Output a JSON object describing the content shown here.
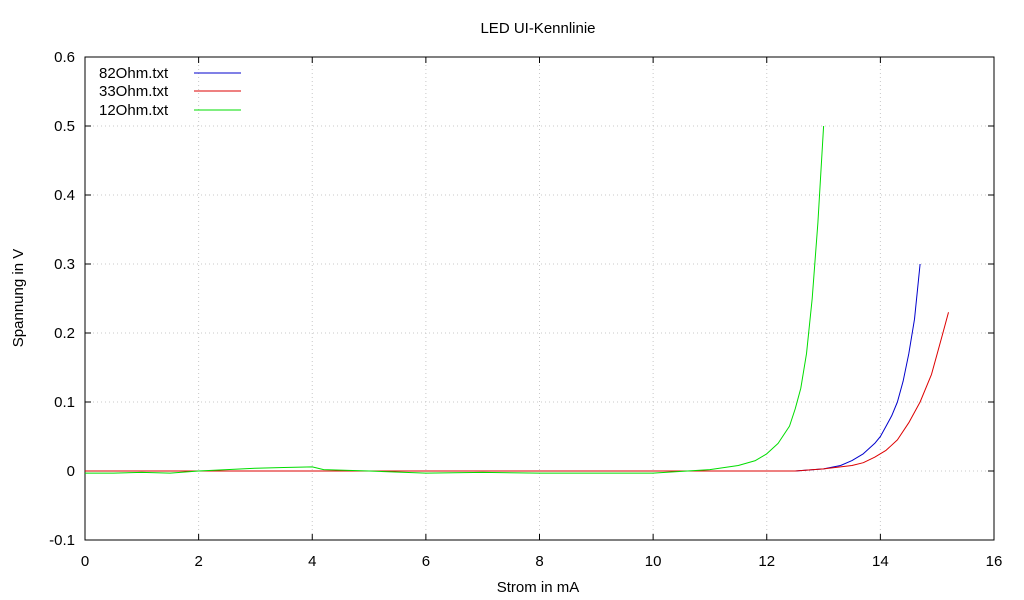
{
  "chart_data": {
    "type": "line",
    "title": "LED UI-Kennlinie",
    "xlabel": "Strom in mA",
    "ylabel": "Spannung in V",
    "xlim": [
      0,
      16
    ],
    "ylim": [
      -0.1,
      0.6
    ],
    "xticks": [
      0,
      2,
      4,
      6,
      8,
      10,
      12,
      14,
      16
    ],
    "yticks": [
      -0.1,
      0,
      0.1,
      0.2,
      0.3,
      0.4,
      0.5,
      0.6
    ],
    "xtick_labels": [
      "0",
      "2",
      "4",
      "6",
      "8",
      "10",
      "12",
      "14",
      "16"
    ],
    "ytick_labels": [
      "-0.1",
      "0",
      "0.1",
      "0.2",
      "0.3",
      "0.4",
      "0.5",
      "0.6"
    ],
    "grid": true,
    "legend_position": "top-left",
    "series": [
      {
        "name": "82Ohm.txt",
        "color": "#0000cc",
        "x": [
          0,
          1,
          2,
          3,
          4,
          5,
          6,
          7,
          8,
          9,
          10,
          11,
          12,
          12.5,
          13,
          13.3,
          13.5,
          13.7,
          13.9,
          14.0,
          14.1,
          14.2,
          14.3,
          14.4,
          14.5,
          14.6,
          14.7
        ],
        "y": [
          0,
          0,
          0,
          0,
          0,
          0,
          0,
          0,
          0,
          0,
          0,
          0,
          0,
          0,
          0.003,
          0.008,
          0.015,
          0.025,
          0.04,
          0.05,
          0.065,
          0.08,
          0.1,
          0.13,
          0.17,
          0.22,
          0.3
        ]
      },
      {
        "name": "33Ohm.txt",
        "color": "#dd0000",
        "x": [
          0,
          1,
          2,
          3,
          4,
          5,
          6,
          7,
          8,
          9,
          10,
          11,
          12,
          12.5,
          13,
          13.5,
          13.7,
          13.9,
          14.1,
          14.3,
          14.5,
          14.7,
          14.9,
          15.0,
          15.1,
          15.2
        ],
        "y": [
          0,
          0,
          0,
          0,
          0,
          0,
          0,
          0,
          0,
          0,
          0,
          0,
          0,
          0,
          0.003,
          0.008,
          0.012,
          0.02,
          0.03,
          0.045,
          0.07,
          0.1,
          0.14,
          0.17,
          0.2,
          0.23
        ]
      },
      {
        "name": "12Ohm.txt",
        "color": "#00dd00",
        "x": [
          0,
          0.5,
          1,
          1.5,
          2,
          2.5,
          3,
          3.5,
          4,
          4.2,
          5,
          6,
          7,
          8,
          9,
          10,
          11,
          11.5,
          11.8,
          12.0,
          12.2,
          12.4,
          12.5,
          12.6,
          12.7,
          12.8,
          12.9,
          13.0
        ],
        "y": [
          -0.003,
          -0.003,
          -0.002,
          -0.003,
          0,
          0.002,
          0.004,
          0.005,
          0.006,
          0.002,
          0,
          -0.003,
          -0.002,
          -0.003,
          -0.003,
          -0.003,
          0.002,
          0.008,
          0.015,
          0.025,
          0.04,
          0.065,
          0.09,
          0.12,
          0.17,
          0.25,
          0.36,
          0.5
        ]
      }
    ]
  }
}
